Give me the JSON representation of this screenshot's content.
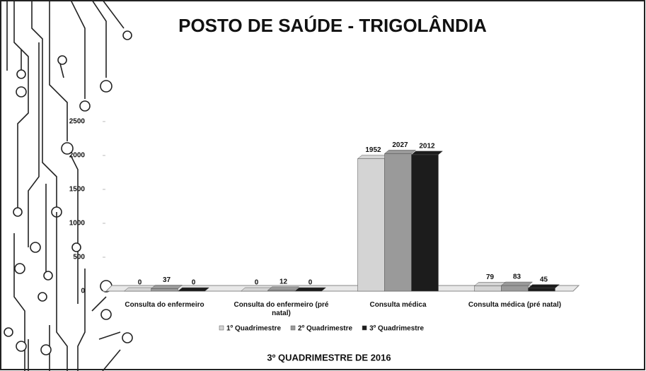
{
  "chart_data": {
    "type": "bar",
    "title": "POSTO DE SAÚDE - TRIGOLÂNDIA",
    "subtitle": "3º QUADRIMESTRE DE 2016",
    "categories": [
      "Consulta do enfermeiro",
      "Consulta do enfermeiro (pré natal)",
      "Consulta médica",
      "Consulta médica (pré natal)"
    ],
    "series": [
      {
        "name": "1º Quadrimestre",
        "color": "#d4d4d4",
        "values": [
          0,
          0,
          1952,
          79
        ]
      },
      {
        "name": "2º Quadrimestre",
        "color": "#9a9a9a",
        "values": [
          37,
          12,
          2027,
          83
        ]
      },
      {
        "name": "3º Quadrimestre",
        "color": "#1c1c1c",
        "values": [
          0,
          0,
          2012,
          45
        ]
      }
    ],
    "ylim": [
      0,
      2500
    ],
    "yticks": [
      0,
      500,
      1000,
      1500,
      2000,
      2500
    ],
    "legend": "bottom"
  }
}
